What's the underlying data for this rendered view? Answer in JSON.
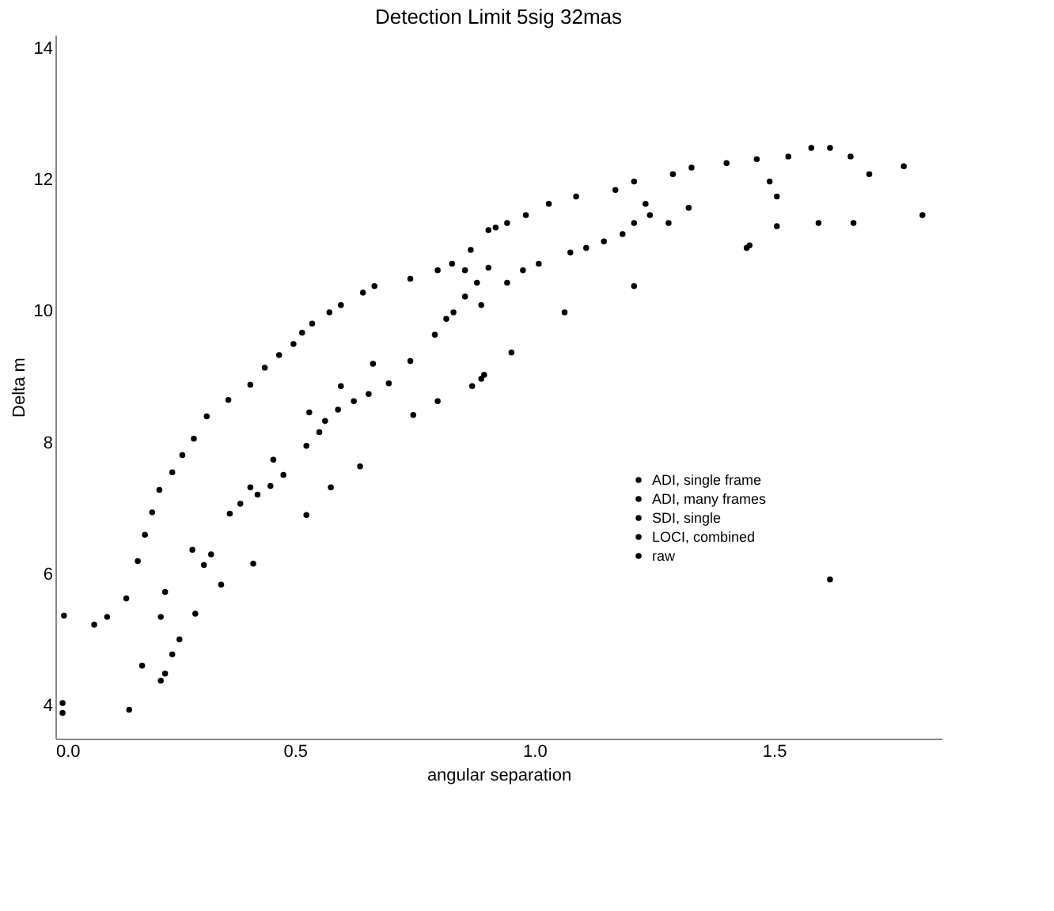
{
  "chart_data": {
    "type": "scatter",
    "title": "Detection Limit 5sig 32mas",
    "xlabel": "angular separation",
    "ylabel": "Delta m",
    "xlim": [
      0,
      1.85
    ],
    "xticks": [
      {
        "value": 0,
        "label": "0.0"
      },
      0.5,
      {
        "value": 1,
        "label": "1.0"
      },
      1.5
    ],
    "ylim": [
      3.5,
      14.2
    ],
    "yticks": [
      4,
      6,
      8,
      10,
      12,
      14
    ],
    "grid": false,
    "legend": "bottom right",
    "marker": "circle",
    "series": [
      {
        "name": "ADI, single frame",
        "color": "#000000",
        "x": [
          0.018,
          0.081,
          0.108,
          0.148,
          0.172,
          0.187,
          0.202,
          0.217,
          0.244,
          0.265,
          0.289,
          0.316,
          0.361,
          0.407,
          0.437,
          0.467,
          0.497,
          0.515,
          0.536,
          0.572,
          0.596,
          0.642,
          0.666,
          0.741,
          0.798,
          0.828,
          0.867,
          0.904,
          0.919,
          0.943,
          0.982,
          1.03,
          1.087,
          1.169,
          1.208,
          1.289,
          1.328,
          1.401,
          1.464,
          1.53,
          1.578,
          1.617,
          1.66,
          1.699,
          1.771
        ],
        "values": [
          5.37,
          5.23,
          5.35,
          5.63,
          6.2,
          6.6,
          6.94,
          7.28,
          7.55,
          7.81,
          8.06,
          8.4,
          8.65,
          8.88,
          9.14,
          9.33,
          9.5,
          9.67,
          9.81,
          9.98,
          10.09,
          10.28,
          10.38,
          10.49,
          10.62,
          10.72,
          10.93,
          11.23,
          11.27,
          11.34,
          11.46,
          11.63,
          11.74,
          11.84,
          11.97,
          12.08,
          12.18,
          12.25,
          12.31,
          12.35,
          12.48,
          12.48,
          12.35,
          12.08,
          12.2
        ]
      },
      {
        "name": "ADI, many frames",
        "color": "#000000",
        "x": [
          0.181,
          0.22,
          0.229,
          0.244,
          0.259,
          0.22,
          0.229,
          0.292,
          0.286,
          0.31,
          0.325,
          0.346,
          0.364,
          0.386,
          0.407,
          0.422,
          0.449,
          0.455,
          0.476,
          0.524,
          0.53,
          0.551,
          0.563,
          0.59,
          0.596,
          0.623,
          0.654,
          0.663,
          0.696,
          0.741,
          0.792,
          0.816,
          0.831,
          0.855,
          0.88,
          0.889,
          0.943,
          0.855,
          0.904,
          0.976,
          1.009,
          1.075,
          1.108,
          1.145,
          1.184,
          1.208,
          1.232,
          1.241,
          1.28,
          1.322,
          1.491,
          1.506,
          1.506,
          1.593,
          1.666,
          1.81
        ],
        "values": [
          4.61,
          4.38,
          4.49,
          4.78,
          5.01,
          5.35,
          5.73,
          5.4,
          6.37,
          6.14,
          6.3,
          5.84,
          6.92,
          7.07,
          7.32,
          7.21,
          7.34,
          7.74,
          7.51,
          7.95,
          8.46,
          8.16,
          8.33,
          8.5,
          8.86,
          8.63,
          8.74,
          9.2,
          8.9,
          9.24,
          9.64,
          9.88,
          9.98,
          10.22,
          10.43,
          10.09,
          10.43,
          10.62,
          10.66,
          10.62,
          10.72,
          10.89,
          10.96,
          11.06,
          11.17,
          11.34,
          11.63,
          11.46,
          11.34,
          11.57,
          11.97,
          11.74,
          11.29,
          11.34,
          11.34,
          11.46
        ]
      },
      {
        "name": "SDI, single",
        "color": "#000000",
        "x": [
          0.154,
          0.413,
          0.524,
          0.575,
          0.636,
          0.747,
          0.798,
          0.87,
          0.889,
          0.895,
          0.952,
          1.063,
          1.208,
          1.443,
          1.449
        ],
        "values": [
          3.94,
          6.16,
          6.9,
          7.32,
          7.64,
          8.42,
          8.63,
          8.86,
          8.97,
          9.03,
          9.37,
          9.98,
          10.38,
          10.96,
          11.0
        ]
      },
      {
        "name": "LOCI, combined",
        "color": "#000000",
        "x": [
          1.617
        ],
        "values": [
          5.92
        ]
      },
      {
        "name": "raw",
        "color": "#000000",
        "x": [
          0.015,
          0.015
        ],
        "values": [
          4.04,
          3.89
        ]
      }
    ]
  }
}
